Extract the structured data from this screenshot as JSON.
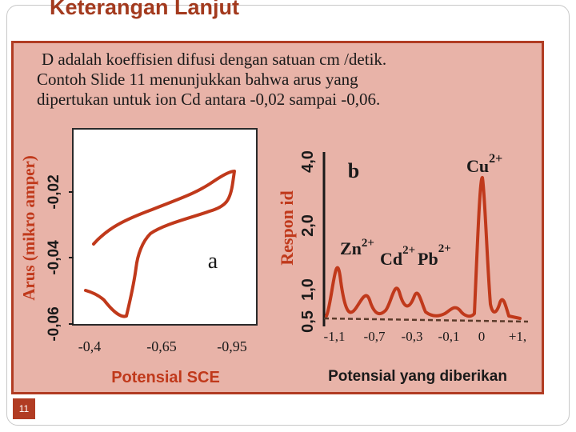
{
  "slide": {
    "title": "Keterangan Lanjut",
    "paragraph": [
      "D adalah koeffisien difusi dengan satuan cm /detik.",
      "Contoh  Slide 11 menunjukkan bahwa arus yang",
      "dipertukan untuk ion Cd antara -0,02 sampai -0,06."
    ],
    "page_number": "11"
  },
  "chart_data": [
    {
      "type": "line",
      "panel_label": "a",
      "ylabel": "Arus (mikro amper)",
      "xlabel": "Potensial SCE",
      "y_ticks": [
        "-0,02",
        "-0,04",
        "-0,06"
      ],
      "x_ticks": [
        "-0,4",
        "-0,65",
        "-0,95"
      ]
    },
    {
      "type": "line",
      "panel_label": "b",
      "ylabel": "Respon  id",
      "xlabel": "Potensial yang diberikan",
      "y_ticks": [
        "4,0",
        "2,0",
        "1,0",
        "0,5"
      ],
      "x_ticks": [
        "-1,1",
        "-0,7",
        "-0,3",
        "-0,1",
        "0",
        "+1,"
      ],
      "peak_labels": [
        {
          "ion": "Zn",
          "charge": "2+"
        },
        {
          "ion": "Cd",
          "charge": "2+"
        },
        {
          "ion": "Pb",
          "charge": "2+"
        },
        {
          "ion": "Cu",
          "charge": "2+"
        }
      ]
    }
  ],
  "colors": {
    "title": "#a33a1e",
    "panel_fill": "#e8b3a8",
    "panel_border": "#b13c23",
    "curve": "#c0391b",
    "baseline": "#5a3a2a"
  }
}
